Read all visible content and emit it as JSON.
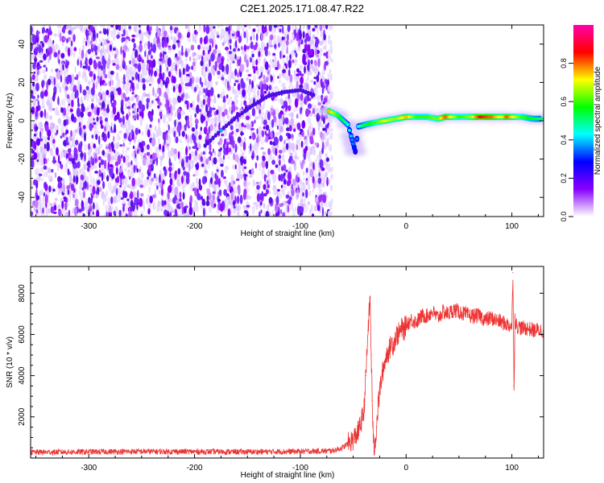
{
  "figure": {
    "title": "C2E1.2025.171.08.47.R22"
  },
  "chart_data": [
    {
      "type": "heatmap",
      "xlabel": "Height of straight line (km)",
      "ylabel": "Frequency (Hz)",
      "xlim": [
        -355,
        130
      ],
      "ylim": [
        -50,
        50
      ],
      "xticks": [
        -300,
        -200,
        -100,
        0,
        100
      ],
      "yticks": [
        -40,
        -20,
        0,
        20,
        40
      ],
      "colorbar": {
        "label": "Normalized spectral amplitude",
        "range": [
          0,
          1
        ],
        "ticks": [
          0.0,
          0.2,
          0.4,
          0.6,
          0.8
        ],
        "tick_labels": [
          "0.0",
          "0.2",
          "0.4",
          "0.6",
          "0.8"
        ],
        "colormap": [
          "#ffffff",
          "#8800ff",
          "#0000ff",
          "#00ffff",
          "#00ff00",
          "#ffff00",
          "#ff0000",
          "#ff00aa"
        ]
      },
      "noise_region": {
        "x_range": [
          -355,
          -73
        ],
        "value_range": [
          0.0,
          0.2
        ]
      },
      "meteor_trace": [
        {
          "x": -190,
          "y": -13,
          "v": 0.2
        },
        {
          "x": -175,
          "y": -5,
          "v": 0.25
        },
        {
          "x": -160,
          "y": 2,
          "v": 0.2
        },
        {
          "x": -145,
          "y": 8,
          "v": 0.2
        },
        {
          "x": -130,
          "y": 13,
          "v": 0.2
        },
        {
          "x": -115,
          "y": 15,
          "v": 0.2
        },
        {
          "x": -100,
          "y": 16,
          "v": 0.2
        },
        {
          "x": -85,
          "y": 13,
          "v": 0.15
        }
      ],
      "signal_band": [
        {
          "x": -73,
          "y": 5,
          "v": 0.75
        },
        {
          "x": -65,
          "y": 3,
          "v": 0.6
        },
        {
          "x": -55,
          "y": -2,
          "v": 0.45
        },
        {
          "x": -52,
          "y": -8,
          "v": 0.4
        },
        {
          "x": -50,
          "y": -12,
          "v": 0.35
        },
        {
          "x": -48,
          "y": -16,
          "v": 0.25
        },
        {
          "x": -45,
          "y": -3,
          "v": 0.45
        },
        {
          "x": -38,
          "y": -2,
          "v": 0.55
        },
        {
          "x": -30,
          "y": -1,
          "v": 0.6
        },
        {
          "x": -20,
          "y": 0,
          "v": 0.7
        },
        {
          "x": -10,
          "y": 1,
          "v": 0.65
        },
        {
          "x": 0,
          "y": 2,
          "v": 0.75
        },
        {
          "x": 10,
          "y": 2,
          "v": 0.6
        },
        {
          "x": 20,
          "y": 2,
          "v": 0.6
        },
        {
          "x": 30,
          "y": 1,
          "v": 0.65
        },
        {
          "x": 37,
          "y": 2,
          "v": 0.8
        },
        {
          "x": 50,
          "y": 2,
          "v": 0.6
        },
        {
          "x": 60,
          "y": 2,
          "v": 0.65
        },
        {
          "x": 70,
          "y": 2,
          "v": 0.85
        },
        {
          "x": 80,
          "y": 2,
          "v": 0.8
        },
        {
          "x": 90,
          "y": 2,
          "v": 0.7
        },
        {
          "x": 95,
          "y": 2,
          "v": 0.8
        },
        {
          "x": 110,
          "y": 2,
          "v": 0.6
        },
        {
          "x": 120,
          "y": 1,
          "v": 0.55
        },
        {
          "x": 128,
          "y": 1,
          "v": 0.5
        }
      ]
    },
    {
      "type": "line",
      "xlabel": "Height of straight line (km)",
      "ylabel": "SNR (10 * v/v)",
      "xlim": [
        -355,
        130
      ],
      "ylim": [
        0,
        9300
      ],
      "xticks": [
        -300,
        -200,
        -100,
        0,
        100
      ],
      "yticks": [
        2000,
        4000,
        6000,
        8000
      ],
      "color": "#ee3333",
      "series": [
        {
          "x": [
            -355,
            -300,
            -250,
            -200,
            -150,
            -100,
            -70,
            -60,
            -50,
            -45,
            -40,
            -38,
            -36,
            -34,
            -33,
            -32,
            -31,
            -30,
            -28,
            -26,
            -24,
            -22,
            -20,
            -18,
            -16,
            -14,
            -12,
            -10,
            -8,
            -6,
            -4,
            -2,
            0,
            5,
            10,
            15,
            20,
            25,
            30,
            35,
            40,
            45,
            50,
            55,
            60,
            65,
            70,
            75,
            80,
            85,
            90,
            95,
            100,
            101,
            102,
            103,
            104,
            105,
            110,
            115,
            120,
            125,
            130
          ],
          "y": [
            280,
            300,
            320,
            310,
            300,
            320,
            350,
            500,
            900,
            1300,
            2200,
            4000,
            6200,
            7800,
            5000,
            2800,
            800,
            400,
            1500,
            2800,
            3600,
            4200,
            4700,
            5100,
            5200,
            5600,
            5500,
            5900,
            6000,
            6100,
            6300,
            6200,
            6500,
            6700,
            6600,
            6900,
            6900,
            7100,
            6800,
            7100,
            7000,
            7200,
            7100,
            7000,
            6900,
            6900,
            6900,
            6700,
            6800,
            6700,
            6600,
            6500,
            6400,
            9000,
            3500,
            6800,
            6500,
            6400,
            6300,
            6300,
            6200,
            6200,
            6200
          ]
        }
      ]
    }
  ]
}
